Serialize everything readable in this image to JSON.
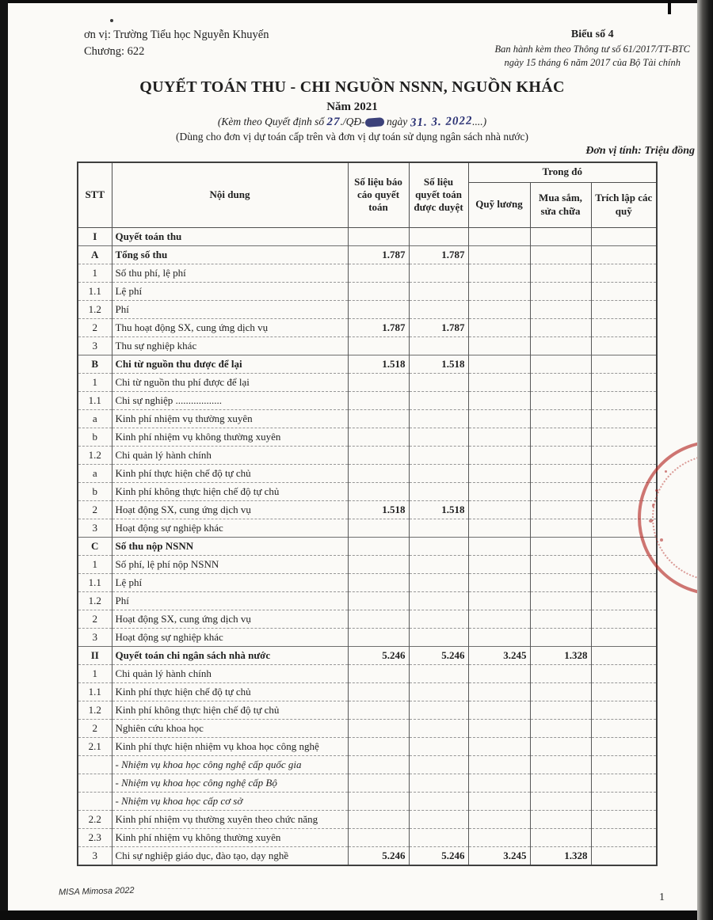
{
  "page": {
    "unit_line": "ơn vị: Trường Tiểu học Nguyễn Khuyến",
    "chapter_line": "Chương: 622",
    "form_no": "Biểu số 4",
    "issued_line1": "Ban hành kèm theo Thông tư số 61/2017/TT-BTC",
    "issued_line2": "ngày 15 tháng 6 năm 2017 của Bộ Tài chính",
    "title": "QUYẾT TOÁN THU - CHI NGUỒN NSNN, NGUỒN KHÁC",
    "year_line": "Năm 2021",
    "attach_prefix": "(Kèm theo Quyết định số",
    "attach_hand_no": "27",
    "attach_mid": "./QĐ-",
    "attach_ngay": "ngày",
    "attach_hand_date": "31. 3. 2022",
    "attach_suffix": "....)",
    "scope_line": "(Dùng cho đơn vị dự toán cấp trên và đơn vị dự toán sử dụng ngân sách nhà nước)",
    "unit_of_measure": "Đơn vị tính: Triệu đồng",
    "footer_left": "MISA Mimosa 2022",
    "page_number": "1",
    "stamp_color": "#b2241e",
    "handwriting_color": "#2b3274"
  },
  "table": {
    "headers": {
      "stt": "STT",
      "noi_dung": "Nội dung",
      "so_lieu_bao_cao": "Số liệu báo cáo quyết toán",
      "so_lieu_duyet": "Số liệu quyết toán được duyệt",
      "trong_do": "Trong đó",
      "quy_luong": "Quỹ lương",
      "mua_sam": "Mua sắm, sửa chữa",
      "trich_lap": "Trích lập các quỹ"
    },
    "rows": [
      {
        "stt": "I",
        "label": "Quyết toán thu",
        "bold": true,
        "values": [
          "",
          "",
          "",
          "",
          ""
        ]
      },
      {
        "stt": "A",
        "label": "Tổng số thu",
        "bold": true,
        "values": [
          "1.787",
          "1.787",
          "",
          "",
          ""
        ]
      },
      {
        "stt": "1",
        "label": "Số thu phí, lệ phí",
        "values": [
          "",
          "",
          "",
          "",
          ""
        ]
      },
      {
        "stt": "1.1",
        "label": "Lệ phí",
        "values": [
          "",
          "",
          "",
          "",
          ""
        ]
      },
      {
        "stt": "1.2",
        "label": "Phí",
        "values": [
          "",
          "",
          "",
          "",
          ""
        ]
      },
      {
        "stt": "2",
        "label": "Thu hoạt động SX, cung ứng dịch vụ",
        "values": [
          "1.787",
          "1.787",
          "",
          "",
          ""
        ]
      },
      {
        "stt": "3",
        "label": "Thu sự nghiệp khác",
        "values": [
          "",
          "",
          "",
          "",
          ""
        ]
      },
      {
        "stt": "B",
        "label": "Chi từ nguồn thu được để lại",
        "bold": true,
        "values": [
          "1.518",
          "1.518",
          "",
          "",
          ""
        ]
      },
      {
        "stt": "1",
        "label": "Chi từ nguồn thu phí được để lại",
        "values": [
          "",
          "",
          "",
          "",
          ""
        ]
      },
      {
        "stt": "1.1",
        "label": "Chi sự nghiệp ..................",
        "values": [
          "",
          "",
          "",
          "",
          ""
        ]
      },
      {
        "stt": "a",
        "label": "Kinh phí nhiệm vụ thường xuyên",
        "values": [
          "",
          "",
          "",
          "",
          ""
        ]
      },
      {
        "stt": "b",
        "label": "Kinh phí nhiệm vụ không thường xuyên",
        "values": [
          "",
          "",
          "",
          "",
          ""
        ]
      },
      {
        "stt": "1.2",
        "label": "Chi quản lý hành chính",
        "values": [
          "",
          "",
          "",
          "",
          ""
        ]
      },
      {
        "stt": "a",
        "label": "Kinh phí thực hiện chế độ tự chủ",
        "values": [
          "",
          "",
          "",
          "",
          ""
        ]
      },
      {
        "stt": "b",
        "label": "Kinh phí không thực hiện chế độ tự chủ",
        "values": [
          "",
          "",
          "",
          "",
          ""
        ]
      },
      {
        "stt": "2",
        "label": "Hoạt động SX, cung ứng dịch vụ",
        "values": [
          "1.518",
          "1.518",
          "",
          "",
          ""
        ]
      },
      {
        "stt": "3",
        "label": "Hoạt động sự nghiệp khác",
        "values": [
          "",
          "",
          "",
          "",
          ""
        ]
      },
      {
        "stt": "C",
        "label": "Số thu nộp NSNN",
        "bold": true,
        "values": [
          "",
          "",
          "",
          "",
          ""
        ]
      },
      {
        "stt": "1",
        "label": "Số phí, lệ phí nộp NSNN",
        "values": [
          "",
          "",
          "",
          "",
          ""
        ]
      },
      {
        "stt": "1.1",
        "label": "Lệ phí",
        "values": [
          "",
          "",
          "",
          "",
          ""
        ]
      },
      {
        "stt": "1.2",
        "label": "Phí",
        "values": [
          "",
          "",
          "",
          "",
          ""
        ]
      },
      {
        "stt": "2",
        "label": "Hoạt động SX, cung ứng dịch vụ",
        "values": [
          "",
          "",
          "",
          "",
          ""
        ]
      },
      {
        "stt": "3",
        "label": "Hoạt động sự nghiệp khác",
        "values": [
          "",
          "",
          "",
          "",
          ""
        ]
      },
      {
        "stt": "II",
        "label": "Quyết toán chi ngân sách nhà nước",
        "bold": true,
        "values": [
          "5.246",
          "5.246",
          "3.245",
          "1.328",
          ""
        ]
      },
      {
        "stt": "1",
        "label": "Chi quản lý hành chính",
        "values": [
          "",
          "",
          "",
          "",
          ""
        ]
      },
      {
        "stt": "1.1",
        "label": "Kinh phí thực hiện chế độ tự chủ",
        "values": [
          "",
          "",
          "",
          "",
          ""
        ]
      },
      {
        "stt": "1.2",
        "label": "Kinh phí không thực hiện chế độ tự chủ",
        "values": [
          "",
          "",
          "",
          "",
          ""
        ]
      },
      {
        "stt": "2",
        "label": "Nghiên cứu khoa học",
        "values": [
          "",
          "",
          "",
          "",
          ""
        ]
      },
      {
        "stt": "2.1",
        "label": "Kinh phí thực hiện nhiệm vụ khoa học công nghệ",
        "values": [
          "",
          "",
          "",
          "",
          ""
        ]
      },
      {
        "stt": "",
        "label": "- Nhiệm vụ khoa học công nghệ cấp quốc gia",
        "italic": true,
        "values": [
          "",
          "",
          "",
          "",
          ""
        ]
      },
      {
        "stt": "",
        "label": "- Nhiệm vụ khoa học công nghệ cấp Bộ",
        "italic": true,
        "values": [
          "",
          "",
          "",
          "",
          ""
        ]
      },
      {
        "stt": "",
        "label": "- Nhiệm vụ khoa học cấp cơ sở",
        "italic": true,
        "values": [
          "",
          "",
          "",
          "",
          ""
        ]
      },
      {
        "stt": "2.2",
        "label": "Kinh phí nhiệm vụ thường xuyên theo chức năng",
        "values": [
          "",
          "",
          "",
          "",
          ""
        ]
      },
      {
        "stt": "2.3",
        "label": "Kinh phí nhiệm vụ không thường xuyên",
        "values": [
          "",
          "",
          "",
          "",
          ""
        ]
      },
      {
        "stt": "3",
        "label": "Chi sự nghiệp giáo dục, đào tạo, dạy nghề",
        "values": [
          "5.246",
          "5.246",
          "3.245",
          "1.328",
          ""
        ]
      }
    ]
  }
}
